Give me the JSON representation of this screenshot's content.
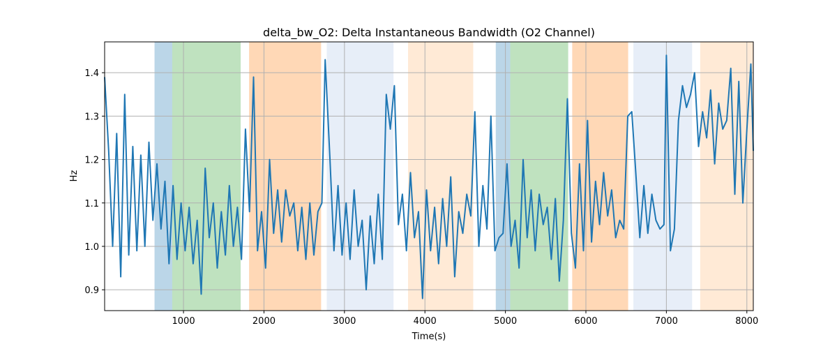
{
  "chart_data": {
    "type": "line",
    "title": "delta_bw_O2: Delta Instantaneous Bandwidth (O2 Channel)",
    "xlabel": "Time(s)",
    "ylabel": "Hz",
    "xlim": [
      20,
      8080
    ],
    "ylim": [
      0.852,
      1.471
    ],
    "xticks": [
      1000,
      2000,
      3000,
      4000,
      5000,
      6000,
      7000,
      8000
    ],
    "yticks": [
      0.9,
      1.0,
      1.1,
      1.2,
      1.3,
      1.4
    ],
    "ytick_labels": [
      "0.9",
      "1.0",
      "1.1",
      "1.2",
      "1.3",
      "1.4"
    ],
    "grid": true,
    "line_color": "#1f77b4",
    "regions": [
      {
        "start": 640,
        "end": 860,
        "color": "#1f77b4"
      },
      {
        "start": 860,
        "end": 1710,
        "color": "#2ca02c"
      },
      {
        "start": 1815,
        "end": 2710,
        "color": "#ff7f0e"
      },
      {
        "start": 2780,
        "end": 3610,
        "color": "#aec7e8"
      },
      {
        "start": 3790,
        "end": 4600,
        "color": "#ffbb78"
      },
      {
        "start": 4880,
        "end": 5060,
        "color": "#1f77b4"
      },
      {
        "start": 5060,
        "end": 5780,
        "color": "#2ca02c"
      },
      {
        "start": 5830,
        "end": 6525,
        "color": "#ff7f0e"
      },
      {
        "start": 6590,
        "end": 7320,
        "color": "#aec7e8"
      },
      {
        "start": 7420,
        "end": 8080,
        "color": "#ffbb78"
      }
    ],
    "x": [
      20,
      70,
      120,
      170,
      220,
      270,
      320,
      370,
      420,
      470,
      520,
      570,
      620,
      670,
      720,
      770,
      820,
      870,
      920,
      970,
      1020,
      1070,
      1120,
      1170,
      1220,
      1270,
      1320,
      1370,
      1420,
      1470,
      1520,
      1570,
      1620,
      1670,
      1720,
      1770,
      1820,
      1870,
      1920,
      1970,
      2020,
      2070,
      2120,
      2170,
      2220,
      2270,
      2320,
      2370,
      2420,
      2470,
      2520,
      2570,
      2620,
      2670,
      2720,
      2760,
      2820,
      2870,
      2920,
      2970,
      3020,
      3070,
      3120,
      3170,
      3220,
      3270,
      3320,
      3370,
      3420,
      3470,
      3520,
      3570,
      3620,
      3670,
      3720,
      3770,
      3820,
      3870,
      3920,
      3970,
      4020,
      4070,
      4120,
      4170,
      4220,
      4270,
      4320,
      4370,
      4420,
      4470,
      4520,
      4570,
      4620,
      4670,
      4720,
      4770,
      4820,
      4870,
      4920,
      4970,
      5020,
      5070,
      5120,
      5170,
      5220,
      5270,
      5320,
      5370,
      5420,
      5470,
      5520,
      5570,
      5620,
      5670,
      5720,
      5770,
      5820,
      5870,
      5920,
      5970,
      6020,
      6070,
      6120,
      6170,
      6220,
      6270,
      6320,
      6370,
      6420,
      6470,
      6520,
      6570,
      6620,
      6670,
      6720,
      6770,
      6820,
      6870,
      6920,
      6970,
      7000,
      7050,
      7100,
      7150,
      7200,
      7250,
      7300,
      7350,
      7400,
      7450,
      7500,
      7550,
      7600,
      7650,
      7700,
      7750,
      7800,
      7850,
      7900,
      7950,
      8000,
      8050,
      8080
    ],
    "y": [
      1.39,
      1.22,
      1.0,
      1.26,
      0.93,
      1.35,
      0.98,
      1.23,
      0.99,
      1.21,
      1.0,
      1.24,
      1.06,
      1.19,
      1.04,
      1.15,
      0.96,
      1.14,
      0.97,
      1.1,
      0.99,
      1.09,
      0.96,
      1.06,
      0.89,
      1.18,
      1.02,
      1.1,
      0.95,
      1.08,
      0.98,
      1.14,
      1.0,
      1.09,
      0.97,
      1.27,
      1.08,
      1.39,
      0.99,
      1.08,
      0.95,
      1.2,
      1.03,
      1.13,
      1.01,
      1.13,
      1.07,
      1.1,
      0.99,
      1.09,
      0.97,
      1.1,
      0.98,
      1.08,
      1.1,
      1.43,
      1.2,
      0.99,
      1.14,
      0.98,
      1.1,
      0.97,
      1.13,
      1.0,
      1.06,
      0.9,
      1.07,
      0.96,
      1.12,
      0.97,
      1.35,
      1.27,
      1.37,
      1.05,
      1.12,
      0.99,
      1.17,
      1.02,
      1.08,
      0.88,
      1.13,
      0.99,
      1.09,
      0.96,
      1.11,
      1.0,
      1.16,
      0.93,
      1.08,
      1.03,
      1.12,
      1.07,
      1.31,
      1.0,
      1.14,
      1.04,
      1.3,
      0.99,
      1.02,
      1.03,
      1.19,
      1.0,
      1.06,
      0.95,
      1.2,
      1.02,
      1.13,
      0.99,
      1.12,
      1.05,
      1.09,
      0.97,
      1.11,
      0.92,
      1.06,
      1.34,
      1.03,
      0.95,
      1.19,
      0.99,
      1.29,
      1.01,
      1.15,
      1.05,
      1.17,
      1.07,
      1.13,
      1.02,
      1.06,
      1.04,
      1.3,
      1.31,
      1.17,
      1.02,
      1.14,
      1.03,
      1.12,
      1.06,
      1.04,
      1.05,
      1.44,
      0.99,
      1.04,
      1.29,
      1.37,
      1.32,
      1.35,
      1.4,
      1.23,
      1.31,
      1.25,
      1.36,
      1.19,
      1.33,
      1.27,
      1.29,
      1.41,
      1.12,
      1.38,
      1.1,
      1.27,
      1.42,
      1.22
    ]
  }
}
